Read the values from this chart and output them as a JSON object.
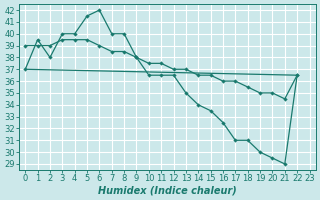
{
  "line1_x": [
    0,
    1,
    2,
    3,
    4,
    5,
    6,
    7,
    8,
    9,
    10,
    11,
    12,
    13,
    14,
    15,
    16,
    17,
    18,
    19,
    20,
    21,
    22
  ],
  "line1_y": [
    37,
    39.5,
    38,
    40,
    40,
    41.5,
    42,
    40,
    40,
    38,
    36.5,
    36.5,
    36.5,
    35,
    34,
    33.5,
    32.5,
    31,
    31,
    30,
    29.5,
    29,
    36.5
  ],
  "line2_x": [
    0,
    1,
    2,
    3,
    4,
    5,
    6,
    7,
    8,
    9,
    10,
    11,
    12,
    13,
    14,
    15,
    16,
    17,
    18,
    19,
    20,
    21,
    22
  ],
  "line2_y": [
    39,
    39,
    39,
    39.5,
    39.5,
    39.5,
    39,
    38.5,
    38.5,
    38,
    37.5,
    37.5,
    37,
    37,
    36.5,
    36.5,
    36,
    36,
    35.5,
    35,
    35,
    34.5,
    36.5
  ],
  "line3_x": [
    0,
    22
  ],
  "line3_y": [
    37,
    36.5
  ],
  "color": "#1a7a6e",
  "bg_color": "#cce8ea",
  "grid_color": "#ffffff",
  "xlabel": "Humidex (Indice chaleur)",
  "ylim": [
    28.5,
    42.5
  ],
  "xlim": [
    -0.5,
    23.5
  ],
  "yticks": [
    29,
    30,
    31,
    32,
    33,
    34,
    35,
    36,
    37,
    38,
    39,
    40,
    41,
    42
  ],
  "xticks": [
    0,
    1,
    2,
    3,
    4,
    5,
    6,
    7,
    8,
    9,
    10,
    11,
    12,
    13,
    14,
    15,
    16,
    17,
    18,
    19,
    20,
    21,
    22,
    23
  ],
  "fontsize": 6
}
